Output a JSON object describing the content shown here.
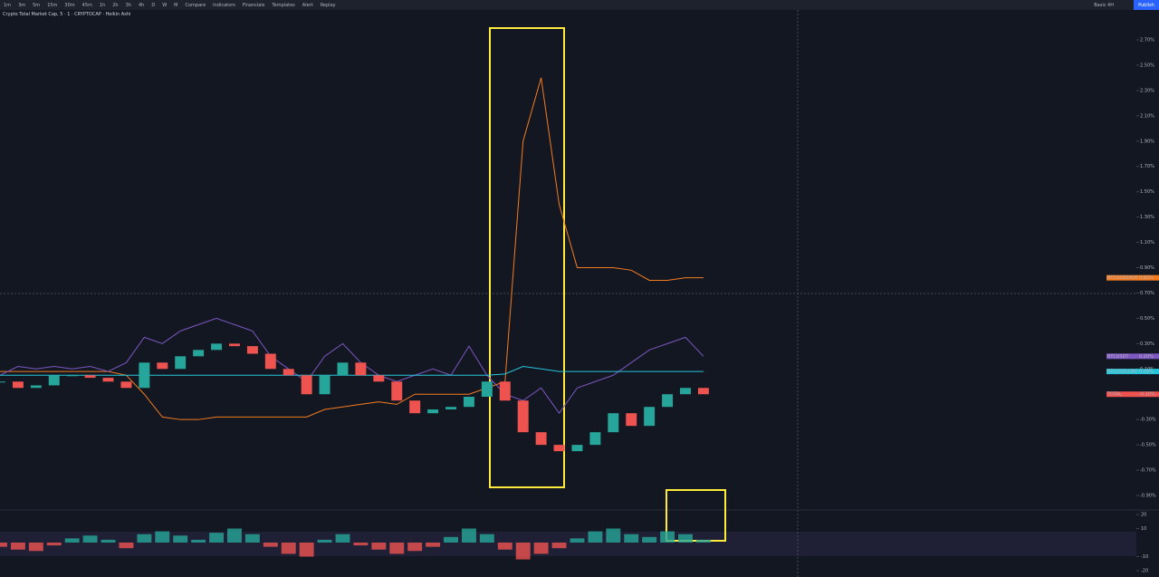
{
  "toolbar": {
    "timeframes": [
      "1m",
      "3m",
      "5m",
      "15m",
      "30m",
      "45m",
      "1h",
      "2h",
      "3h",
      "4h",
      "D",
      "W",
      "M"
    ],
    "tools": [
      "Compare",
      "Indicators",
      "Financials",
      "Templates",
      "Alert",
      "Replay"
    ],
    "layout": "Basic 4H",
    "publish": "Publish"
  },
  "legend": {
    "title": "Crypto Total Market Cap, 5 · 1 · CRYPTOCAP · Heikin Ashi"
  },
  "chart_data": {
    "type": "line",
    "x": [
      0,
      1,
      2,
      3,
      4,
      5,
      6,
      7,
      8,
      9,
      10,
      11,
      12,
      13,
      14,
      15,
      16,
      17,
      18,
      19,
      20,
      21,
      22,
      23,
      24,
      25,
      26,
      27,
      28,
      29,
      30,
      31,
      32,
      33,
      34,
      35,
      36,
      37,
      38,
      39
    ],
    "xlim": [
      0,
      63
    ],
    "ylim": [
      -1.0,
      2.75
    ],
    "yticks": [
      {
        "value": 2.7,
        "label": "2.70%"
      },
      {
        "value": 2.5,
        "label": "2.50%"
      },
      {
        "value": 2.3,
        "label": "2.30%"
      },
      {
        "value": 2.1,
        "label": "2.10%"
      },
      {
        "value": 1.9,
        "label": "1.90%"
      },
      {
        "value": 1.7,
        "label": "1.70%"
      },
      {
        "value": 1.5,
        "label": "1.50%"
      },
      {
        "value": 1.3,
        "label": "1.30%"
      },
      {
        "value": 1.1,
        "label": "1.10%"
      },
      {
        "value": 0.9,
        "label": "0.90%"
      },
      {
        "value": 0.7,
        "label": "0.70%"
      },
      {
        "value": 0.5,
        "label": "0.50%"
      },
      {
        "value": 0.3,
        "label": "0.30%"
      },
      {
        "value": 0.1,
        "label": "0.10%"
      },
      {
        "value": -0.1,
        "label": "-0.10%"
      },
      {
        "value": -0.3,
        "label": "-0.30%"
      },
      {
        "value": -0.5,
        "label": "-0.50%"
      },
      {
        "value": -0.7,
        "label": "-0.70%"
      },
      {
        "value": -0.9,
        "label": "-0.90%"
      }
    ],
    "series": [
      {
        "name": "BTCUSDSHORTS",
        "color": "#f57c1f",
        "value_label": "0.82%",
        "values": [
          0.08,
          0.08,
          0.08,
          0.08,
          0.08,
          0.08,
          0.08,
          0.05,
          -0.1,
          -0.28,
          -0.3,
          -0.3,
          -0.28,
          -0.28,
          -0.28,
          -0.28,
          -0.28,
          -0.28,
          -0.22,
          -0.2,
          -0.18,
          -0.16,
          -0.18,
          -0.1,
          -0.1,
          -0.1,
          -0.1,
          -0.05,
          0.0,
          1.9,
          2.4,
          1.4,
          0.9,
          0.9,
          0.9,
          0.88,
          0.8,
          0.8,
          0.82,
          0.82
        ]
      },
      {
        "name": "BTCUSDT",
        "color": "#7e57c2",
        "value_label": "0.20%",
        "values": [
          0.05,
          0.12,
          0.1,
          0.12,
          0.1,
          0.12,
          0.08,
          0.15,
          0.35,
          0.3,
          0.4,
          0.45,
          0.5,
          0.45,
          0.4,
          0.2,
          0.1,
          0.0,
          0.2,
          0.3,
          0.15,
          0.05,
          0.0,
          0.05,
          0.1,
          0.05,
          0.28,
          0.05,
          -0.1,
          -0.15,
          -0.05,
          -0.25,
          -0.05,
          0.0,
          0.05,
          0.15,
          0.25,
          0.3,
          0.35,
          0.2
        ]
      },
      {
        "name": "BTCUSDLONGS",
        "color": "#26c6da",
        "value_label": "0.08%",
        "values": [
          0.05,
          0.05,
          0.05,
          0.05,
          0.05,
          0.05,
          0.05,
          0.05,
          0.05,
          0.05,
          0.05,
          0.05,
          0.05,
          0.05,
          0.05,
          0.05,
          0.05,
          0.05,
          0.05,
          0.05,
          0.05,
          0.05,
          0.05,
          0.05,
          0.05,
          0.05,
          0.05,
          0.05,
          0.06,
          0.12,
          0.1,
          0.08,
          0.08,
          0.08,
          0.08,
          0.08,
          0.08,
          0.08,
          0.08,
          0.08
        ]
      },
      {
        "name": "TOTAL",
        "type": "candles",
        "color": "#26a69a",
        "down_color": "#ef5350",
        "value_label": "-0.10%",
        "values": [
          0.0,
          -0.05,
          -0.03,
          0.05,
          0.05,
          0.03,
          0.0,
          -0.05,
          0.15,
          0.1,
          0.2,
          0.25,
          0.3,
          0.28,
          0.22,
          0.1,
          0.05,
          -0.1,
          0.05,
          0.15,
          0.05,
          0.0,
          -0.15,
          -0.25,
          -0.22,
          -0.2,
          -0.12,
          0.0,
          -0.15,
          -0.4,
          -0.5,
          -0.55,
          -0.5,
          -0.4,
          -0.25,
          -0.35,
          -0.2,
          -0.1,
          -0.05,
          -0.1
        ]
      }
    ],
    "oscillator": {
      "ylim": [
        -20,
        20
      ],
      "yticks": [
        20,
        10,
        -10,
        -20
      ],
      "values": [
        -3,
        -5,
        -6,
        -2,
        3,
        5,
        2,
        -4,
        6,
        8,
        5,
        2,
        7,
        10,
        6,
        -3,
        -8,
        -10,
        2,
        6,
        -2,
        -5,
        -8,
        -6,
        -3,
        4,
        10,
        6,
        -5,
        -12,
        -8,
        -4,
        3,
        8,
        10,
        6,
        4,
        8,
        6,
        2
      ]
    }
  }
}
